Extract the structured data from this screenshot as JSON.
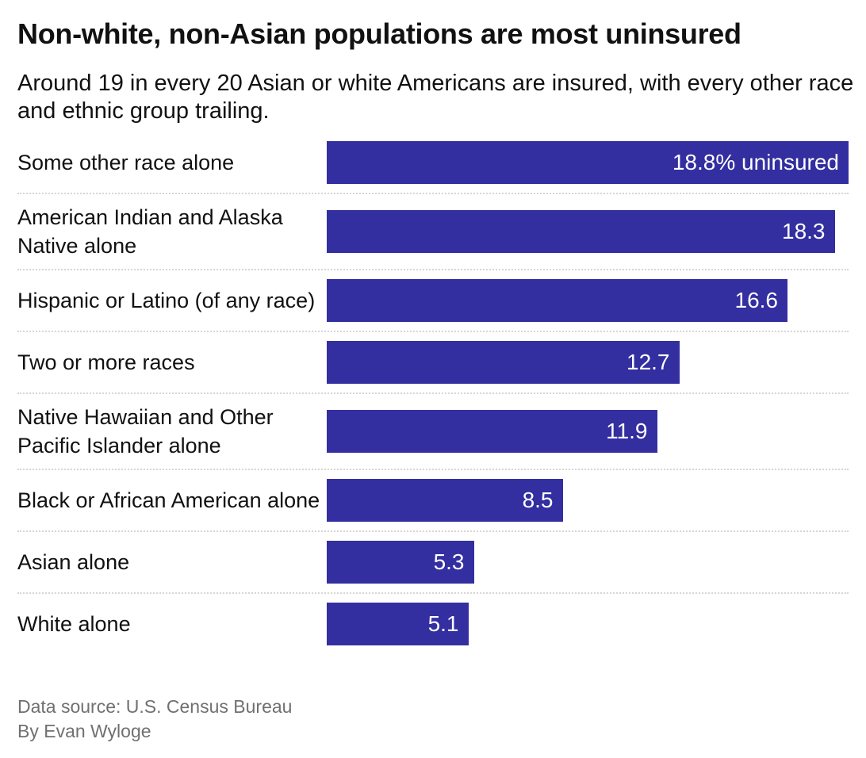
{
  "chart_data": {
    "type": "bar",
    "orientation": "horizontal",
    "title": "Non-white, non-Asian populations are most uninsured",
    "subtitle": "Around 19 in every 20 Asian or white Americans are insured, with every other race and ethnic group trailing.",
    "categories": [
      "Some other race alone",
      "American Indian and Alaska Native alone",
      "Hispanic or Latino (of any race)",
      "Two or more races",
      "Native Hawaiian and Other Pacific Islander alone",
      "Black or African American alone",
      "Asian alone",
      "White alone"
    ],
    "values": [
      18.8,
      18.3,
      16.6,
      12.7,
      11.9,
      8.5,
      5.3,
      5.1
    ],
    "value_labels": [
      "18.8% uninsured",
      "18.3",
      "16.6",
      "12.7",
      "11.9",
      "8.5",
      "5.3",
      "5.1"
    ],
    "xlim": [
      0,
      18.8
    ],
    "grid": false,
    "bar_color": "#332fa0"
  },
  "footer": {
    "source": "Data source: U.S. Census Bureau",
    "byline": "By Evan Wyloge"
  }
}
